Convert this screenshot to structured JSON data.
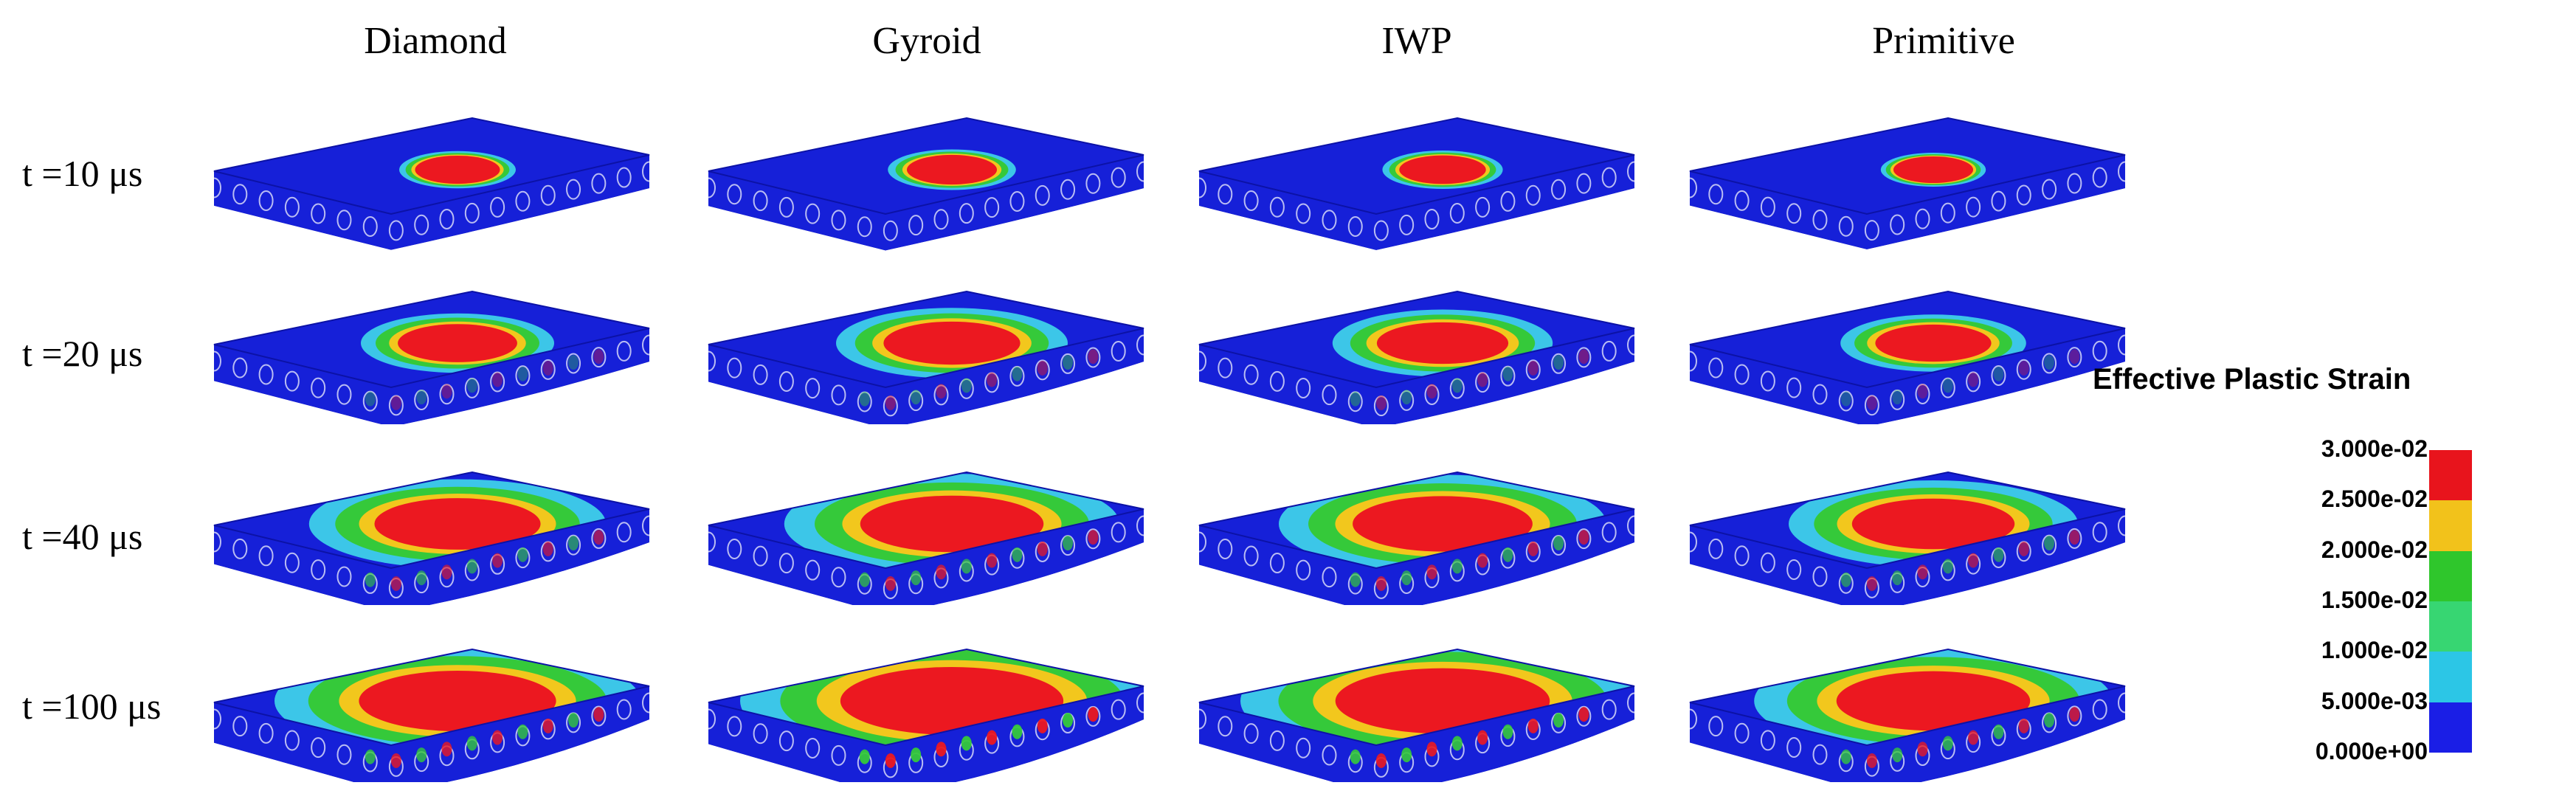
{
  "columns": [
    "Diamond",
    "Gyroid",
    "IWP",
    "Primitive"
  ],
  "rows": [
    "t =10 μs",
    "t =20 μs",
    "t =40 μs",
    "t =100 μs"
  ],
  "legend": {
    "title": "Effective Plastic Strain",
    "ticks": [
      "3.000e-02",
      "2.500e-02",
      "2.000e-02",
      "1.500e-02",
      "1.000e-02",
      "5.000e-03",
      "0.000e+00"
    ],
    "colors": [
      "#e8141c",
      "#f2c21b",
      "#2fc62c",
      "#37d672",
      "#2cc6e6",
      "#1a1ee6"
    ]
  },
  "colors": {
    "plate": "#1620d8",
    "plate_dark": "#0c12a6",
    "cyan": "#3cc6e8",
    "green": "#35c93a",
    "yellow": "#f2c71d",
    "red": "#ec1820"
  },
  "panels": [
    [
      {
        "damage": 0.15
      },
      {
        "damage": 0.18
      },
      {
        "damage": 0.16
      },
      {
        "damage": 0.12
      }
    ],
    [
      {
        "damage": 0.35
      },
      {
        "damage": 0.45
      },
      {
        "damage": 0.42
      },
      {
        "damage": 0.33
      }
    ],
    [
      {
        "damage": 0.62
      },
      {
        "damage": 0.72
      },
      {
        "damage": 0.7
      },
      {
        "damage": 0.6
      }
    ],
    [
      {
        "damage": 0.8
      },
      {
        "damage": 0.95
      },
      {
        "damage": 0.9
      },
      {
        "damage": 0.78
      }
    ]
  ]
}
